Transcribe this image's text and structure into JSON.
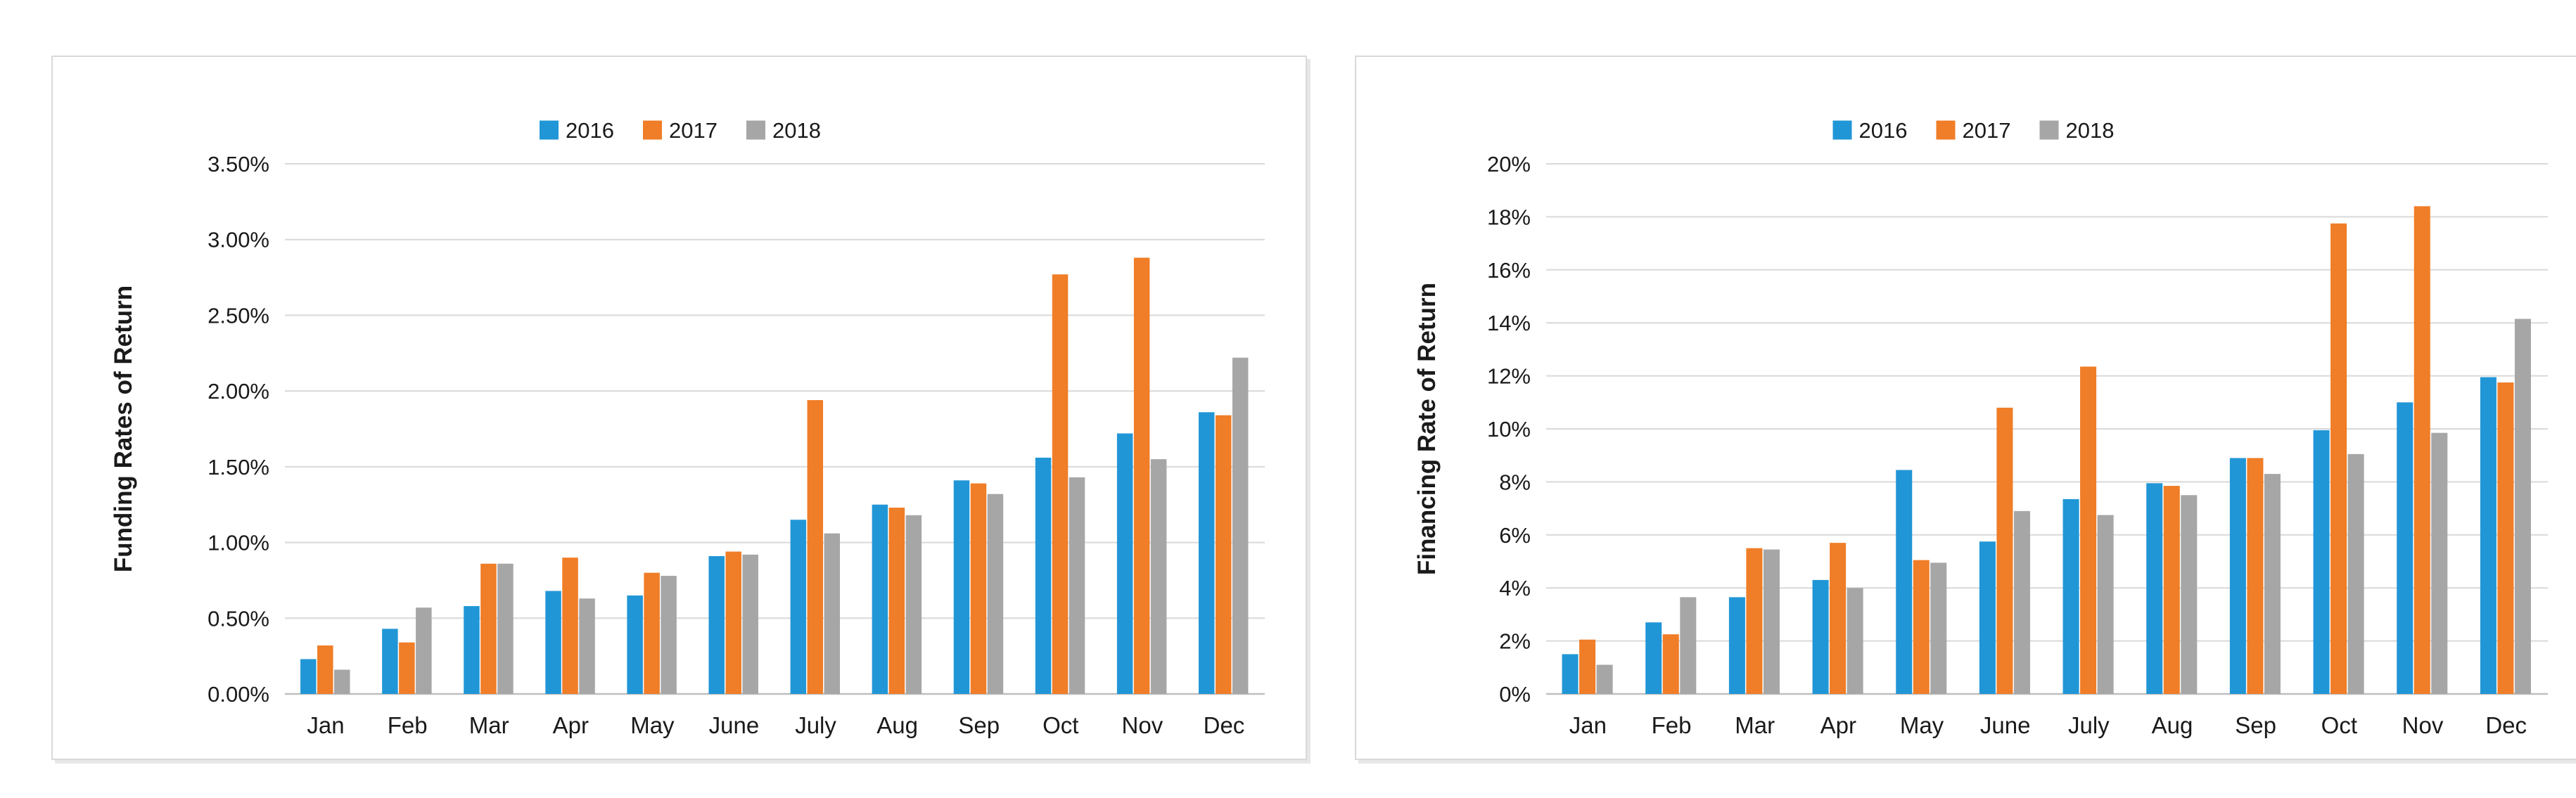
{
  "figure": {
    "background": "#ffffff",
    "panel_border_color": "#d9d9d9",
    "text_color": "#1a1a1a",
    "gridline_color": "#d9d9d9",
    "axis_line_color": "#bfbfbf"
  },
  "legend": {
    "position": "top-center",
    "entries": [
      {
        "label": "2016",
        "color": "#2196d6"
      },
      {
        "label": "2017",
        "color": "#f07d27"
      },
      {
        "label": "2018",
        "color": "#a6a6a6"
      }
    ]
  },
  "chart_data": [
    {
      "type": "bar",
      "title": "",
      "xlabel": "",
      "ylabel": "Funding Rates of Return",
      "legend_position": "top",
      "grid": true,
      "ylim": [
        0,
        3.5
      ],
      "ytick_step": 0.5,
      "yticks": [
        {
          "value": 0.0,
          "label": "0.00%"
        },
        {
          "value": 0.5,
          "label": "0.50%"
        },
        {
          "value": 1.0,
          "label": "1.00%"
        },
        {
          "value": 1.5,
          "label": "1.50%"
        },
        {
          "value": 2.0,
          "label": "2.00%"
        },
        {
          "value": 2.5,
          "label": "2.50%"
        },
        {
          "value": 3.0,
          "label": "3.00%"
        },
        {
          "value": 3.5,
          "label": "3.50%"
        }
      ],
      "categories": [
        "Jan",
        "Feb",
        "Mar",
        "Apr",
        "May",
        "June",
        "July",
        "Aug",
        "Sep",
        "Oct",
        "Nov",
        "Dec"
      ],
      "series": [
        {
          "name": "2016",
          "color": "#2196d6",
          "values": [
            0.23,
            0.43,
            0.58,
            0.68,
            0.65,
            0.91,
            1.15,
            1.25,
            1.41,
            1.56,
            1.72,
            1.86
          ]
        },
        {
          "name": "2017",
          "color": "#f07d27",
          "values": [
            0.32,
            0.34,
            0.86,
            0.9,
            0.8,
            0.94,
            1.94,
            1.23,
            1.39,
            2.77,
            2.88,
            1.84
          ]
        },
        {
          "name": "2018",
          "color": "#a6a6a6",
          "values": [
            0.16,
            0.57,
            0.86,
            0.63,
            0.78,
            0.92,
            1.06,
            1.18,
            1.32,
            1.43,
            1.55,
            2.22
          ]
        }
      ]
    },
    {
      "type": "bar",
      "title": "",
      "xlabel": "",
      "ylabel": "Financing Rate of Return",
      "legend_position": "top",
      "grid": true,
      "ylim": [
        0,
        20
      ],
      "ytick_step": 2,
      "yticks": [
        {
          "value": 0,
          "label": "0%"
        },
        {
          "value": 2,
          "label": "2%"
        },
        {
          "value": 4,
          "label": "4%"
        },
        {
          "value": 6,
          "label": "6%"
        },
        {
          "value": 8,
          "label": "8%"
        },
        {
          "value": 10,
          "label": "10%"
        },
        {
          "value": 12,
          "label": "12%"
        },
        {
          "value": 14,
          "label": "14%"
        },
        {
          "value": 16,
          "label": "16%"
        },
        {
          "value": 18,
          "label": "18%"
        },
        {
          "value": 20,
          "label": "20%"
        }
      ],
      "categories": [
        "Jan",
        "Feb",
        "Mar",
        "Apr",
        "May",
        "June",
        "July",
        "Aug",
        "Sep",
        "Oct",
        "Nov",
        "Dec"
      ],
      "series": [
        {
          "name": "2016",
          "color": "#2196d6",
          "values": [
            1.5,
            2.7,
            3.65,
            4.3,
            8.45,
            5.75,
            7.35,
            7.95,
            8.9,
            9.95,
            11.0,
            11.95
          ]
        },
        {
          "name": "2017",
          "color": "#f07d27",
          "values": [
            2.05,
            2.25,
            5.5,
            5.7,
            5.05,
            10.8,
            12.35,
            7.85,
            8.9,
            17.75,
            18.4,
            11.75
          ]
        },
        {
          "name": "2018",
          "color": "#a6a6a6",
          "values": [
            1.1,
            3.65,
            5.45,
            4.0,
            4.95,
            6.9,
            6.75,
            7.5,
            8.3,
            9.05,
            9.85,
            14.15
          ]
        }
      ]
    }
  ]
}
